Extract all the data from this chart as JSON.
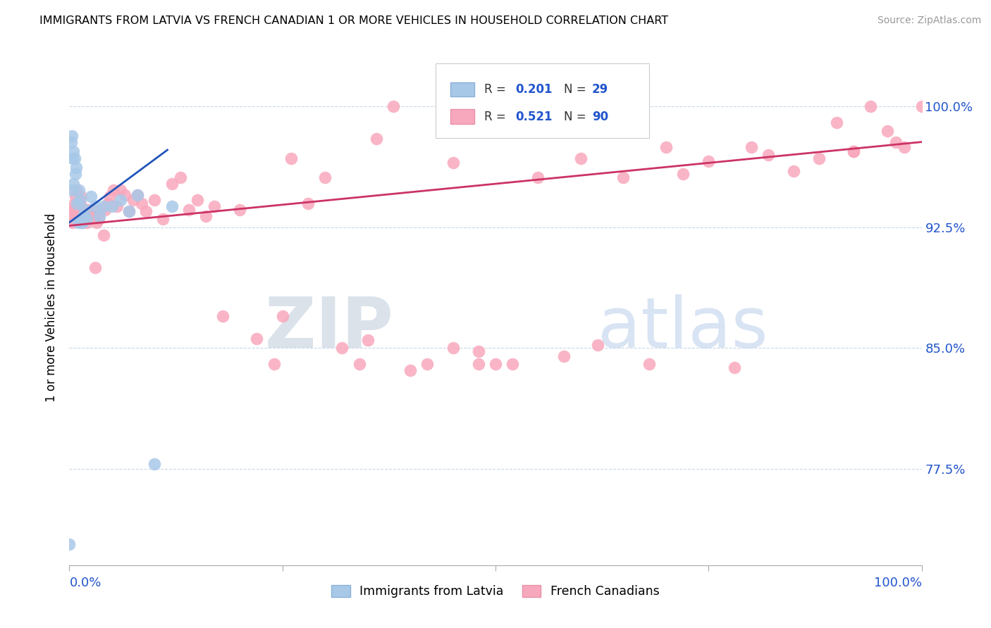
{
  "title": "IMMIGRANTS FROM LATVIA VS FRENCH CANADIAN 1 OR MORE VEHICLES IN HOUSEHOLD CORRELATION CHART",
  "source": "Source: ZipAtlas.com",
  "ylabel": "1 or more Vehicles in Household",
  "yticks": [
    0.775,
    0.85,
    0.925,
    1.0
  ],
  "ytick_labels": [
    "77.5%",
    "85.0%",
    "92.5%",
    "100.0%"
  ],
  "xlim": [
    0.0,
    1.0
  ],
  "ylim": [
    0.715,
    1.035
  ],
  "blue_R": 0.201,
  "blue_N": 29,
  "pink_R": 0.521,
  "pink_N": 90,
  "blue_label": "Immigrants from Latvia",
  "pink_label": "French Canadians",
  "blue_color": "#a8c8e8",
  "blue_line_color": "#2255bb",
  "pink_color": "#f8a8bc",
  "pink_line_color": "#cc3366",
  "legend_R_color": "#2255cc",
  "watermark_zip": "ZIP",
  "watermark_atlas": "atlas",
  "blue_x": [
    0.0,
    0.002,
    0.003,
    0.004,
    0.004,
    0.005,
    0.005,
    0.006,
    0.007,
    0.008,
    0.009,
    0.01,
    0.011,
    0.012,
    0.013,
    0.015,
    0.016,
    0.018,
    0.02,
    0.025,
    0.03,
    0.035,
    0.04,
    0.05,
    0.06,
    0.07,
    0.08,
    0.1,
    0.12
  ],
  "blue_y": [
    0.728,
    0.978,
    0.982,
    0.968,
    0.948,
    0.972,
    0.952,
    0.968,
    0.958,
    0.962,
    0.94,
    0.928,
    0.948,
    0.942,
    0.928,
    0.928,
    0.932,
    0.936,
    0.93,
    0.944,
    0.938,
    0.932,
    0.938,
    0.938,
    0.942,
    0.935,
    0.945,
    0.778,
    0.938
  ],
  "pink_x": [
    0.002,
    0.003,
    0.004,
    0.005,
    0.006,
    0.007,
    0.008,
    0.009,
    0.01,
    0.011,
    0.012,
    0.013,
    0.014,
    0.015,
    0.016,
    0.017,
    0.018,
    0.02,
    0.022,
    0.024,
    0.026,
    0.028,
    0.03,
    0.032,
    0.034,
    0.036,
    0.04,
    0.042,
    0.045,
    0.048,
    0.052,
    0.056,
    0.06,
    0.065,
    0.07,
    0.075,
    0.08,
    0.085,
    0.09,
    0.1,
    0.11,
    0.12,
    0.13,
    0.14,
    0.15,
    0.16,
    0.17,
    0.18,
    0.2,
    0.22,
    0.24,
    0.26,
    0.28,
    0.3,
    0.32,
    0.34,
    0.36,
    0.38,
    0.4,
    0.42,
    0.45,
    0.48,
    0.5,
    0.55,
    0.6,
    0.65,
    0.7,
    0.75,
    0.8,
    0.85,
    0.88,
    0.9,
    0.92,
    0.94,
    0.96,
    0.98,
    1.0,
    0.25,
    0.35,
    0.45,
    0.52,
    0.62,
    0.72,
    0.82,
    0.92,
    0.97,
    0.48,
    0.58,
    0.68,
    0.78
  ],
  "pink_y": [
    0.935,
    0.932,
    0.928,
    0.936,
    0.94,
    0.944,
    0.948,
    0.936,
    0.93,
    0.932,
    0.936,
    0.94,
    0.944,
    0.928,
    0.936,
    0.936,
    0.93,
    0.928,
    0.936,
    0.932,
    0.936,
    0.932,
    0.9,
    0.928,
    0.93,
    0.936,
    0.92,
    0.936,
    0.94,
    0.944,
    0.948,
    0.938,
    0.948,
    0.945,
    0.935,
    0.942,
    0.945,
    0.94,
    0.935,
    0.942,
    0.93,
    0.952,
    0.956,
    0.936,
    0.942,
    0.932,
    0.938,
    0.87,
    0.936,
    0.856,
    0.84,
    0.968,
    0.94,
    0.956,
    0.85,
    0.84,
    0.98,
    1.0,
    0.836,
    0.84,
    0.965,
    0.84,
    0.84,
    0.956,
    0.968,
    0.956,
    0.975,
    0.966,
    0.975,
    0.96,
    0.968,
    0.99,
    0.972,
    1.0,
    0.985,
    0.975,
    1.0,
    0.87,
    0.855,
    0.85,
    0.84,
    0.852,
    0.958,
    0.97,
    0.972,
    0.978,
    0.848,
    0.845,
    0.84,
    0.838
  ]
}
